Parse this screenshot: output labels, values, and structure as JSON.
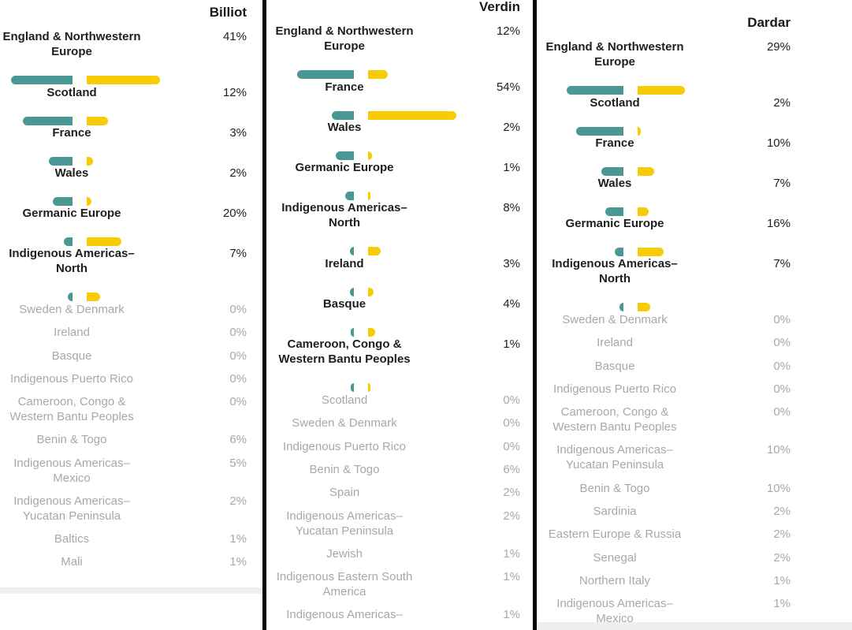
{
  "colors": {
    "teal": "#4a9896",
    "gold": "#f7cc06",
    "dim_text": "#a8a8a8"
  },
  "chart_data": [
    {
      "type": "bar",
      "title": "Billiot",
      "series_colors": [
        "teal",
        "gold"
      ],
      "rows": [
        {
          "label": "England & Northwestern Europe",
          "lines": [
            "England & Northwestern",
            "Europe"
          ],
          "percent": "41%",
          "value": 41,
          "teal": 0.41,
          "gold": 0.49,
          "bold": true
        },
        {
          "label": "Scotland",
          "lines": [
            "Scotland"
          ],
          "percent": "12%",
          "value": 12,
          "teal": 0.33,
          "gold": 0.14,
          "bold": true
        },
        {
          "label": "France",
          "lines": [
            "France"
          ],
          "percent": "3%",
          "value": 3,
          "teal": 0.16,
          "gold": 0.04,
          "bold": true
        },
        {
          "label": "Wales",
          "lines": [
            "Wales"
          ],
          "percent": "2%",
          "value": 2,
          "teal": 0.13,
          "gold": 0.03,
          "bold": true
        },
        {
          "label": "Germanic Europe",
          "lines": [
            "Germanic Europe"
          ],
          "percent": "20%",
          "value": 20,
          "teal": 0.06,
          "gold": 0.23,
          "bold": true
        },
        {
          "label": "Indigenous Americas-North",
          "lines": [
            "Indigenous Americas–",
            "North"
          ],
          "percent": "7%",
          "value": 7,
          "teal": 0.03,
          "gold": 0.09,
          "bold": true
        },
        {
          "label": "Sweden & Denmark",
          "lines": [
            "Sweden & Denmark"
          ],
          "percent": "0%",
          "value": 0,
          "bold": false
        },
        {
          "label": "Ireland",
          "lines": [
            "Ireland"
          ],
          "percent": "0%",
          "value": 0,
          "bold": false
        },
        {
          "label": "Basque",
          "lines": [
            "Basque"
          ],
          "percent": "0%",
          "value": 0,
          "bold": false
        },
        {
          "label": "Indigenous Puerto Rico",
          "lines": [
            "Indigenous Puerto Rico"
          ],
          "percent": "0%",
          "value": 0,
          "bold": false
        },
        {
          "label": "Cameroon, Congo & Western Bantu Peoples",
          "lines": [
            "Cameroon, Congo &",
            "Western Bantu Peoples"
          ],
          "percent": "0%",
          "value": 0,
          "bold": false
        },
        {
          "label": "Benin & Togo",
          "lines": [
            "Benin & Togo"
          ],
          "percent": "6%",
          "value": 6,
          "bold": false
        },
        {
          "label": "Indigenous Americas-Mexico",
          "lines": [
            "Indigenous Americas–",
            "Mexico"
          ],
          "percent": "5%",
          "value": 5,
          "bold": false
        },
        {
          "label": "Indigenous Americas-Yucatan Peninsula",
          "lines": [
            "Indigenous Americas–",
            "Yucatan Peninsula"
          ],
          "percent": "2%",
          "value": 2,
          "bold": false
        },
        {
          "label": "Baltics",
          "lines": [
            "Baltics"
          ],
          "percent": "1%",
          "value": 1,
          "bold": false
        },
        {
          "label": "Mali",
          "lines": [
            "Mali"
          ],
          "percent": "1%",
          "value": 1,
          "bold": false
        }
      ]
    },
    {
      "type": "bar",
      "title": "Verdin",
      "series_colors": [
        "teal",
        "gold"
      ],
      "rows": [
        {
          "label": "England & Northwestern Europe",
          "lines": [
            "England & Northwestern",
            "Europe"
          ],
          "percent": "12%",
          "value": 12,
          "teal": 0.41,
          "gold": 0.14,
          "bold": true
        },
        {
          "label": "France",
          "lines": [
            "France"
          ],
          "percent": "54%",
          "value": 54,
          "teal": 0.16,
          "gold": 0.64,
          "bold": true
        },
        {
          "label": "Wales",
          "lines": [
            "Wales"
          ],
          "percent": "2%",
          "value": 2,
          "teal": 0.13,
          "gold": 0.03,
          "bold": true
        },
        {
          "label": "Germanic Europe",
          "lines": [
            "Germanic Europe"
          ],
          "percent": "1%",
          "value": 1,
          "teal": 0.06,
          "gold": 0.015,
          "bold": true
        },
        {
          "label": "Indigenous Americas-North",
          "lines": [
            "Indigenous Americas–",
            "North"
          ],
          "percent": "8%",
          "value": 8,
          "teal": 0.03,
          "gold": 0.09,
          "bold": true
        },
        {
          "label": "Ireland",
          "lines": [
            "Ireland"
          ],
          "percent": "3%",
          "value": 3,
          "teal": 0.03,
          "gold": 0.04,
          "bold": true
        },
        {
          "label": "Basque",
          "lines": [
            "Basque"
          ],
          "percent": "4%",
          "value": 4,
          "teal": 0.02,
          "gold": 0.05,
          "bold": true
        },
        {
          "label": "Cameroon, Congo & Western Bantu Peoples",
          "lines": [
            "Cameroon, Congo &",
            "Western Bantu Peoples"
          ],
          "percent": "1%",
          "value": 1,
          "teal": 0.02,
          "gold": 0.015,
          "bold": true
        },
        {
          "label": "Scotland",
          "lines": [
            "Scotland"
          ],
          "percent": "0%",
          "value": 0,
          "bold": false
        },
        {
          "label": "Sweden & Denmark",
          "lines": [
            "Sweden & Denmark"
          ],
          "percent": "0%",
          "value": 0,
          "bold": false
        },
        {
          "label": "Indigenous Puerto Rico",
          "lines": [
            "Indigenous Puerto Rico"
          ],
          "percent": "0%",
          "value": 0,
          "bold": false
        },
        {
          "label": "Benin & Togo",
          "lines": [
            "Benin & Togo"
          ],
          "percent": "6%",
          "value": 6,
          "bold": false
        },
        {
          "label": "Spain",
          "lines": [
            "Spain"
          ],
          "percent": "2%",
          "value": 2,
          "bold": false
        },
        {
          "label": "Indigenous Americas-Yucatan Peninsula",
          "lines": [
            "Indigenous Americas–",
            "Yucatan Peninsula"
          ],
          "percent": "2%",
          "value": 2,
          "bold": false
        },
        {
          "label": "Jewish",
          "lines": [
            "Jewish"
          ],
          "percent": "1%",
          "value": 1,
          "bold": false
        },
        {
          "label": "Indigenous Eastern South America",
          "lines": [
            "Indigenous Eastern South",
            "America"
          ],
          "percent": "1%",
          "value": 1,
          "bold": false
        },
        {
          "label": "Indigenous Americas-",
          "lines": [
            "Indigenous Americas–"
          ],
          "percent": "1%",
          "value": 1,
          "bold": false
        }
      ]
    },
    {
      "type": "bar",
      "title": "Dardar",
      "series_colors": [
        "teal",
        "gold"
      ],
      "rows": [
        {
          "label": "England & Northwestern Europe",
          "lines": [
            "England & Northwestern",
            "Europe"
          ],
          "percent": "29%",
          "value": 29,
          "teal": 0.41,
          "gold": 0.34,
          "bold": true
        },
        {
          "label": "Scotland",
          "lines": [
            "Scotland"
          ],
          "percent": "2%",
          "value": 2,
          "teal": 0.34,
          "gold": 0.02,
          "bold": true
        },
        {
          "label": "France",
          "lines": [
            "France"
          ],
          "percent": "10%",
          "value": 10,
          "teal": 0.16,
          "gold": 0.12,
          "bold": true
        },
        {
          "label": "Wales",
          "lines": [
            "Wales"
          ],
          "percent": "7%",
          "value": 7,
          "teal": 0.13,
          "gold": 0.08,
          "bold": true
        },
        {
          "label": "Germanic Europe",
          "lines": [
            "Germanic Europe"
          ],
          "percent": "16%",
          "value": 16,
          "teal": 0.06,
          "gold": 0.19,
          "bold": true
        },
        {
          "label": "Indigenous Americas-North",
          "lines": [
            "Indigenous Americas–",
            "North"
          ],
          "percent": "7%",
          "value": 7,
          "teal": 0.03,
          "gold": 0.09,
          "bold": true
        },
        {
          "label": "Sweden & Denmark",
          "lines": [
            "Sweden & Denmark"
          ],
          "percent": "0%",
          "value": 0,
          "bold": false
        },
        {
          "label": "Ireland",
          "lines": [
            "Ireland"
          ],
          "percent": "0%",
          "value": 0,
          "bold": false
        },
        {
          "label": "Basque",
          "lines": [
            "Basque"
          ],
          "percent": "0%",
          "value": 0,
          "bold": false
        },
        {
          "label": "Indigenous Puerto Rico",
          "lines": [
            "Indigenous Puerto Rico"
          ],
          "percent": "0%",
          "value": 0,
          "bold": false
        },
        {
          "label": "Cameroon, Congo & Western Bantu Peoples",
          "lines": [
            "Cameroon, Congo &",
            "Western Bantu Peoples"
          ],
          "percent": "0%",
          "value": 0,
          "bold": false
        },
        {
          "label": "Indigenous Americas-Yucatan Peninsula",
          "lines": [
            "Indigenous Americas–",
            "Yucatan Peninsula"
          ],
          "percent": "10%",
          "value": 10,
          "bold": false
        },
        {
          "label": "Benin & Togo",
          "lines": [
            "Benin & Togo"
          ],
          "percent": "10%",
          "value": 10,
          "bold": false
        },
        {
          "label": "Sardinia",
          "lines": [
            "Sardinia"
          ],
          "percent": "2%",
          "value": 2,
          "bold": false
        },
        {
          "label": "Eastern Europe & Russia",
          "lines": [
            "Eastern Europe & Russia"
          ],
          "percent": "2%",
          "value": 2,
          "bold": false
        },
        {
          "label": "Senegal",
          "lines": [
            "Senegal"
          ],
          "percent": "2%",
          "value": 2,
          "bold": false
        },
        {
          "label": "Northern Italy",
          "lines": [
            "Northern Italy"
          ],
          "percent": "1%",
          "value": 1,
          "bold": false
        },
        {
          "label": "Indigenous Americas-Mexico",
          "lines": [
            "Indigenous Americas–",
            "Mexico"
          ],
          "percent": "1%",
          "value": 1,
          "bold": false
        }
      ]
    }
  ]
}
